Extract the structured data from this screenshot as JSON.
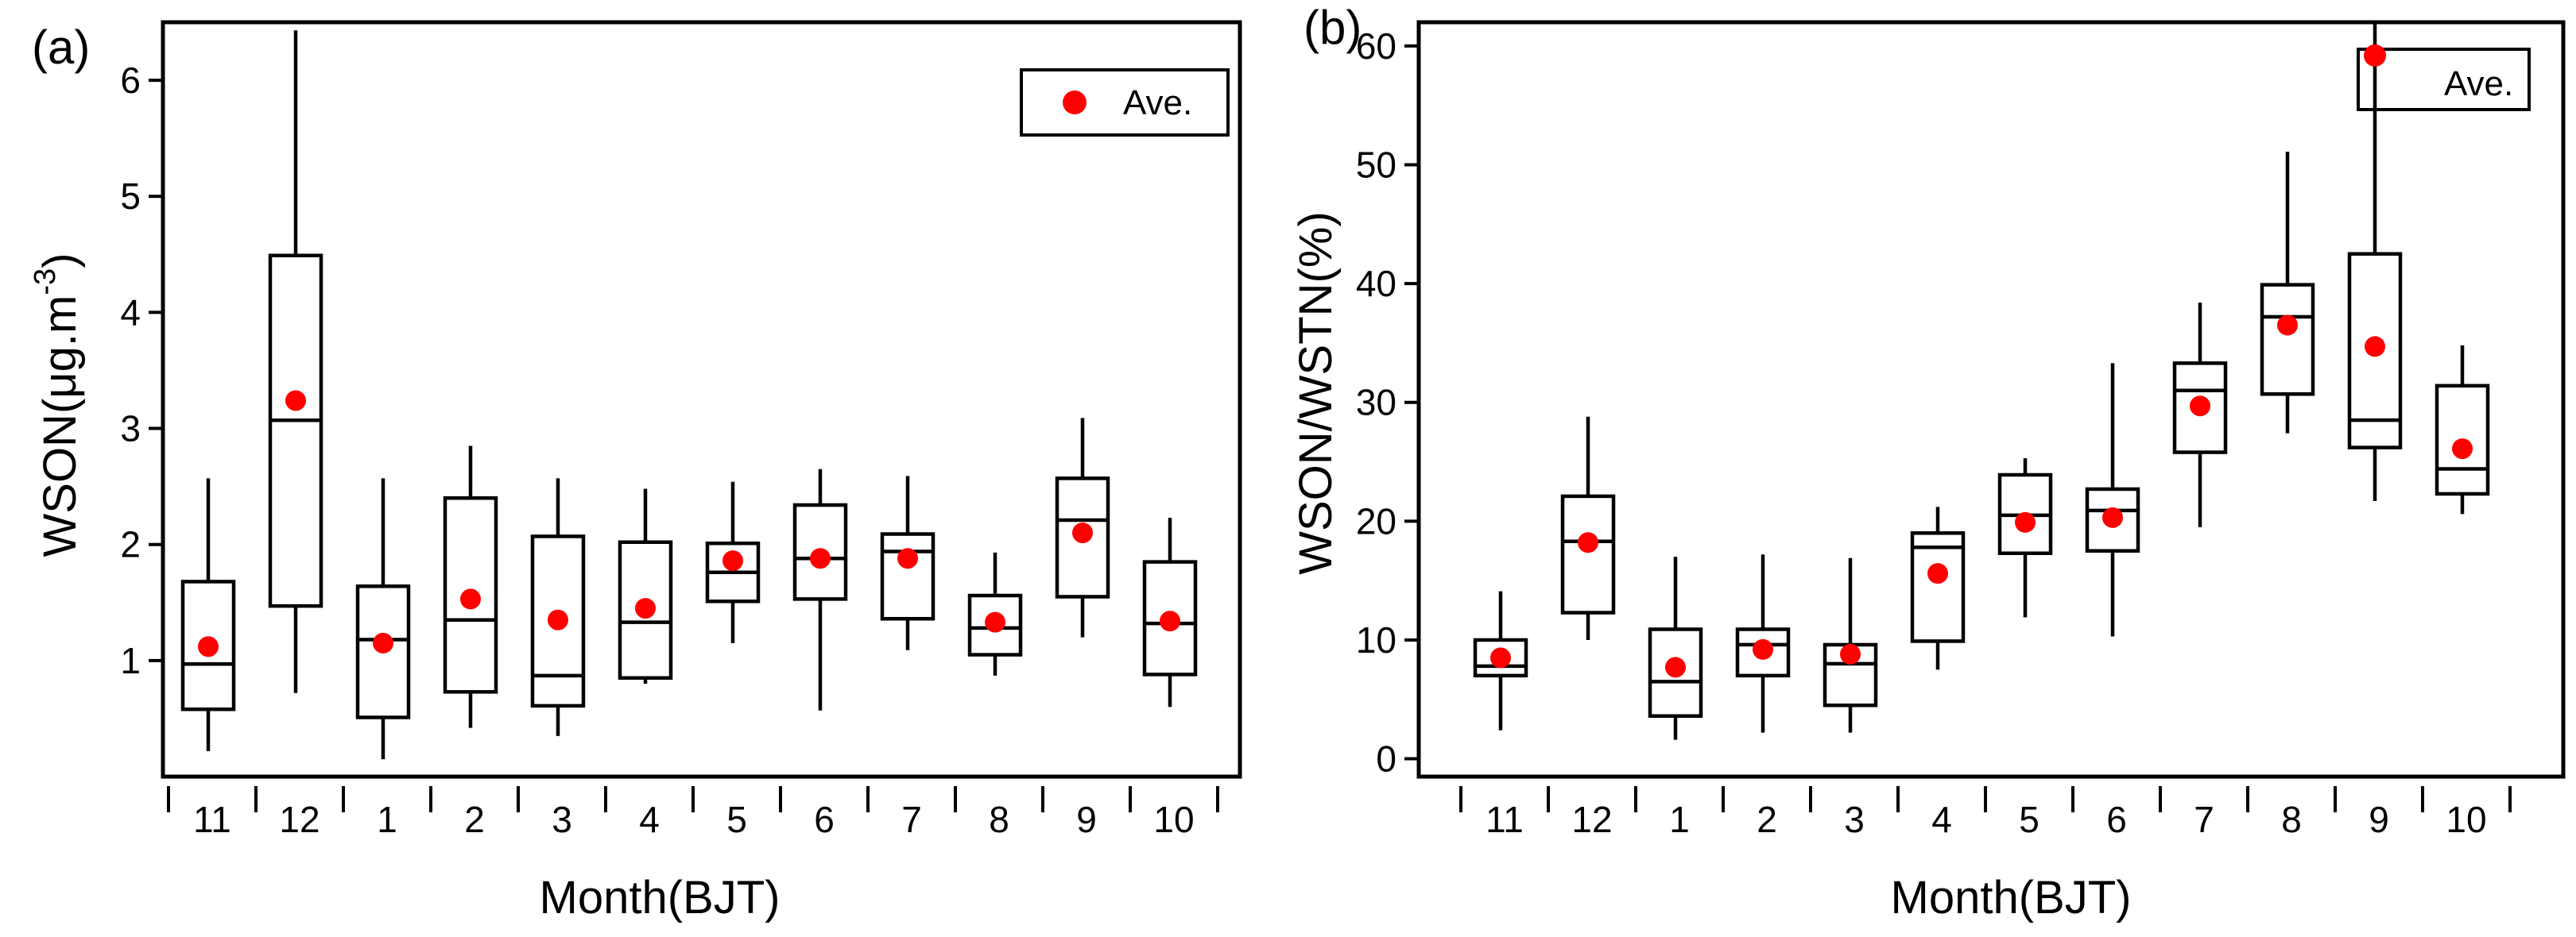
{
  "colors": {
    "mean_marker": "#ff0000",
    "ink": "#000000"
  },
  "chart_data": [
    {
      "panel": "(a)",
      "type": "box",
      "categories": [
        "11",
        "12",
        "1",
        "2",
        "3",
        "4",
        "5",
        "6",
        "7",
        "8",
        "9",
        "10"
      ],
      "xlabel": "Month(BJT)",
      "ylabel": "WSON(μg.m",
      "ylabel_sup": "-3",
      "ylabel_close": ")",
      "ylim": [
        0,
        6.5
      ],
      "yticks": [
        1,
        2,
        3,
        4,
        5,
        6
      ],
      "legend": {
        "label": "Ave.",
        "position": "top-right"
      },
      "series": [
        {
          "name": "11",
          "min": 0.22,
          "q1": 0.58,
          "median": 0.97,
          "q3": 1.68,
          "max": 2.57,
          "mean": 1.12
        },
        {
          "name": "12",
          "min": 0.72,
          "q1": 1.47,
          "median": 3.07,
          "q3": 4.49,
          "max": 6.43,
          "mean": 3.24
        },
        {
          "name": "1",
          "min": 0.15,
          "q1": 0.51,
          "median": 1.18,
          "q3": 1.64,
          "max": 2.57,
          "mean": 1.15
        },
        {
          "name": "2",
          "min": 0.42,
          "q1": 0.73,
          "median": 1.35,
          "q3": 2.4,
          "max": 2.85,
          "mean": 1.53
        },
        {
          "name": "3",
          "min": 0.35,
          "q1": 0.61,
          "median": 0.87,
          "q3": 2.07,
          "max": 2.57,
          "mean": 1.35
        },
        {
          "name": "4",
          "min": 0.8,
          "q1": 0.85,
          "median": 1.33,
          "q3": 2.02,
          "max": 2.48,
          "mean": 1.45
        },
        {
          "name": "5",
          "min": 1.15,
          "q1": 1.51,
          "median": 1.76,
          "q3": 2.01,
          "max": 2.54,
          "mean": 1.86
        },
        {
          "name": "6",
          "min": 0.57,
          "q1": 1.53,
          "median": 1.88,
          "q3": 2.34,
          "max": 2.65,
          "mean": 1.88
        },
        {
          "name": "7",
          "min": 1.09,
          "q1": 1.36,
          "median": 1.94,
          "q3": 2.09,
          "max": 2.59,
          "mean": 1.88
        },
        {
          "name": "8",
          "min": 0.87,
          "q1": 1.05,
          "median": 1.28,
          "q3": 1.56,
          "max": 1.93,
          "mean": 1.33
        },
        {
          "name": "9",
          "min": 1.2,
          "q1": 1.55,
          "median": 2.21,
          "q3": 2.57,
          "max": 3.09,
          "mean": 2.1
        },
        {
          "name": "10",
          "min": 0.6,
          "q1": 0.88,
          "median": 1.32,
          "q3": 1.85,
          "max": 2.23,
          "mean": 1.34
        }
      ]
    },
    {
      "panel": "(b)",
      "type": "box",
      "categories": [
        "11",
        "12",
        "1",
        "2",
        "3",
        "4",
        "5",
        "6",
        "7",
        "8",
        "9",
        "10"
      ],
      "xlabel": "Month(BJT)",
      "ylabel": "WSON/WSTN(%)",
      "ylim": [
        -1.5,
        62
      ],
      "yticks": [
        0,
        10,
        20,
        30,
        40,
        50,
        60
      ],
      "legend": {
        "label": "Ave.",
        "position": "top-right"
      },
      "series": [
        {
          "name": "11",
          "min": 2.4,
          "q1": 7.0,
          "median": 7.8,
          "q3": 10.0,
          "max": 14.1,
          "mean": 8.5
        },
        {
          "name": "12",
          "min": 10.0,
          "q1": 12.3,
          "median": 18.3,
          "q3": 22.1,
          "max": 28.8,
          "mean": 18.2
        },
        {
          "name": "1",
          "min": 1.6,
          "q1": 3.6,
          "median": 6.5,
          "q3": 10.9,
          "max": 17.0,
          "mean": 7.7
        },
        {
          "name": "2",
          "min": 2.2,
          "q1": 7.0,
          "median": 9.6,
          "q3": 10.9,
          "max": 17.2,
          "mean": 9.2
        },
        {
          "name": "3",
          "min": 2.2,
          "q1": 4.5,
          "median": 8.0,
          "q3": 9.6,
          "max": 16.9,
          "mean": 8.8
        },
        {
          "name": "4",
          "min": 7.5,
          "q1": 9.9,
          "median": 17.8,
          "q3": 19.0,
          "max": 21.2,
          "mean": 15.6
        },
        {
          "name": "5",
          "min": 11.9,
          "q1": 17.3,
          "median": 20.5,
          "q3": 23.9,
          "max": 25.3,
          "mean": 19.9
        },
        {
          "name": "6",
          "min": 10.3,
          "q1": 17.5,
          "median": 20.9,
          "q3": 22.7,
          "max": 33.3,
          "mean": 20.3
        },
        {
          "name": "7",
          "min": 19.5,
          "q1": 25.8,
          "median": 31.0,
          "q3": 33.3,
          "max": 38.4,
          "mean": 29.7
        },
        {
          "name": "8",
          "min": 27.4,
          "q1": 30.7,
          "median": 37.2,
          "q3": 39.9,
          "max": 51.1,
          "mean": 36.5
        },
        {
          "name": "9",
          "min": 21.7,
          "q1": 26.2,
          "median": 28.5,
          "q3": 42.5,
          "max": 62.0,
          "mean": 34.7
        },
        {
          "name": "10",
          "min": 20.6,
          "q1": 22.3,
          "median": 24.4,
          "q3": 31.4,
          "max": 34.8,
          "mean": 26.1
        }
      ],
      "extra_points": [
        {
          "category": "9",
          "value": 59.2,
          "note": "mean-style marker near top"
        }
      ]
    }
  ]
}
